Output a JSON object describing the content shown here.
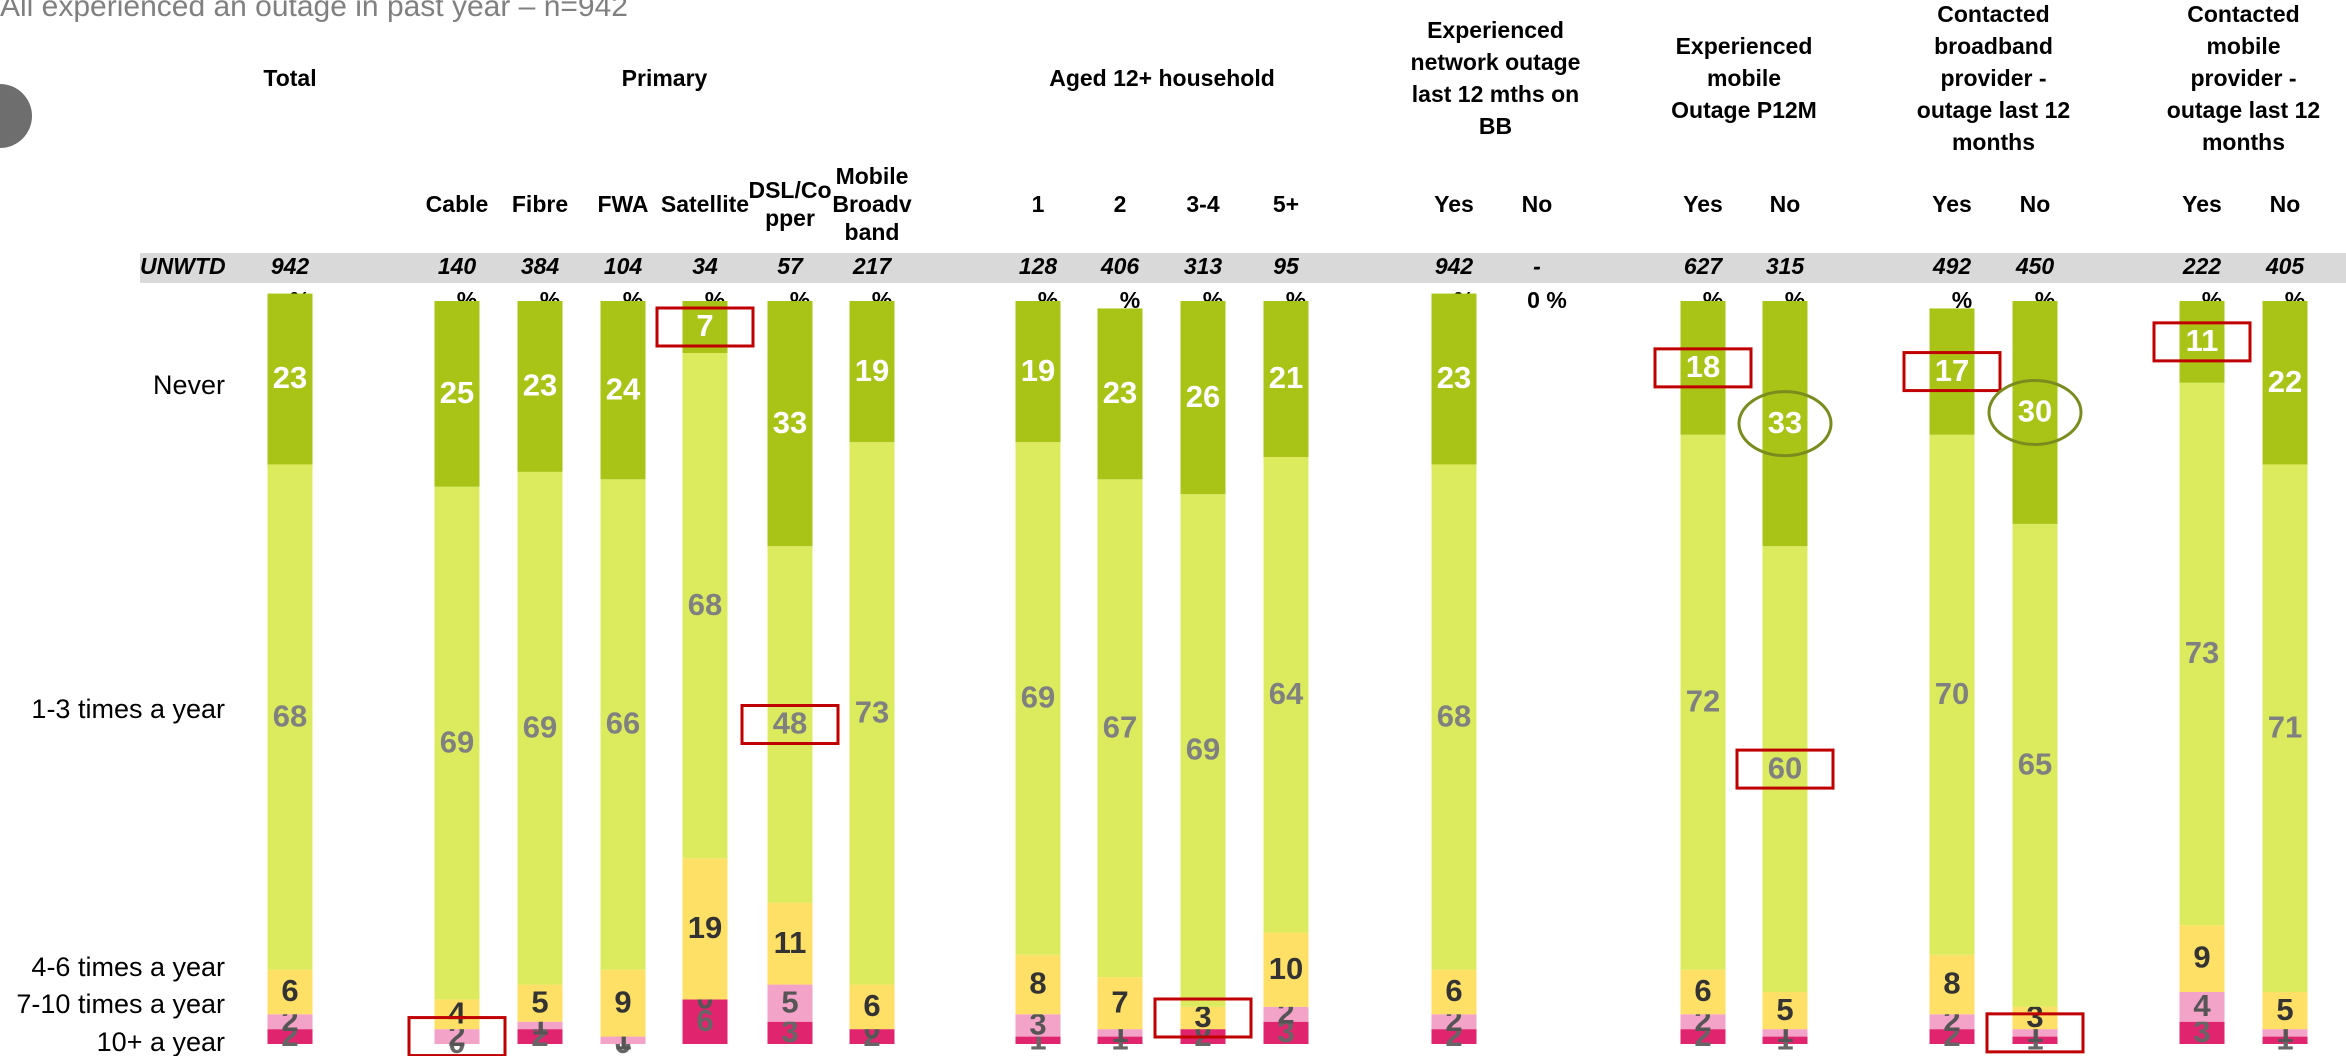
{
  "chart_data": {
    "type": "stacked_bar",
    "title": "All experienced an outage in past year – n=942",
    "base_label": "UNWTD",
    "ylim": [
      0,
      100
    ],
    "groups": [
      {
        "title": [
          "Total"
        ],
        "columns": [
          null
        ]
      },
      {
        "title": [
          "Primary"
        ],
        "columns": [
          [
            "Cable"
          ],
          [
            "Fibre"
          ],
          [
            "FWA"
          ],
          [
            "Satellite"
          ],
          [
            "DSL/Co",
            "pper"
          ],
          [
            "Mobile",
            "Broadv",
            "band"
          ]
        ]
      },
      {
        "title": [
          "Aged 12+ household"
        ],
        "columns": [
          [
            "1"
          ],
          [
            "2"
          ],
          [
            "3-4"
          ],
          [
            "5+"
          ]
        ]
      },
      {
        "title": [
          "Experienced",
          "network outage",
          "last 12 mths on",
          "BB"
        ],
        "columns": [
          [
            "Yes"
          ],
          [
            "No"
          ]
        ]
      },
      {
        "title": [
          "Experienced",
          "mobile",
          "Outage P12M"
        ],
        "columns": [
          [
            "Yes"
          ],
          [
            "No"
          ]
        ]
      },
      {
        "title": [
          "Contacted",
          "broadband",
          "provider -",
          "outage last 12",
          "months"
        ],
        "columns": [
          [
            "Yes"
          ],
          [
            "No"
          ]
        ]
      },
      {
        "title": [
          "Contacted",
          "mobile",
          "provider -",
          "outage last 12",
          "months"
        ],
        "columns": [
          [
            "Yes"
          ],
          [
            "No"
          ]
        ]
      }
    ],
    "bases": [
      942,
      140,
      384,
      104,
      34,
      57,
      217,
      128,
      406,
      313,
      95,
      942,
      "-",
      627,
      315,
      492,
      450,
      222,
      405
    ],
    "pct_labels": [
      "%",
      "%",
      "%",
      "%",
      "%",
      "%",
      "%",
      "%",
      "%",
      "%",
      "%",
      "%",
      "0 %",
      "%",
      "%",
      "%",
      "%",
      "%",
      "%"
    ],
    "series": [
      {
        "name": "10+ a year",
        "color": "#e0246e",
        "label_color": "#666666",
        "values": [
          2,
          0,
          2,
          0,
          6,
          3,
          2,
          1,
          1,
          2,
          3,
          2,
          null,
          2,
          1,
          2,
          1,
          3,
          1
        ]
      },
      {
        "name": "7-10 times a year",
        "color": "#f4a3c8",
        "label_color": "#555555",
        "values": [
          2,
          2,
          1,
          1,
          0,
          5,
          0,
          3,
          1,
          0,
          2,
          2,
          null,
          2,
          1,
          2,
          1,
          4,
          1
        ]
      },
      {
        "name": "4-6 times a year",
        "color": "#ffe066",
        "label_color": "#333333",
        "values": [
          6,
          4,
          5,
          9,
          19,
          11,
          6,
          8,
          7,
          3,
          10,
          6,
          null,
          6,
          5,
          8,
          3,
          9,
          5
        ]
      },
      {
        "name": "1-3 times a year",
        "color": "#dceb5e",
        "label_color": "#808080",
        "values": [
          68,
          69,
          69,
          66,
          68,
          48,
          73,
          69,
          67,
          69,
          64,
          68,
          null,
          72,
          60,
          70,
          65,
          73,
          71
        ]
      },
      {
        "name": "Never",
        "color": "#a9c416",
        "label_color": "#ffffff",
        "values": [
          23,
          25,
          23,
          24,
          7,
          33,
          19,
          19,
          23,
          26,
          21,
          23,
          null,
          18,
          33,
          17,
          30,
          11,
          22
        ]
      }
    ]
  }
}
